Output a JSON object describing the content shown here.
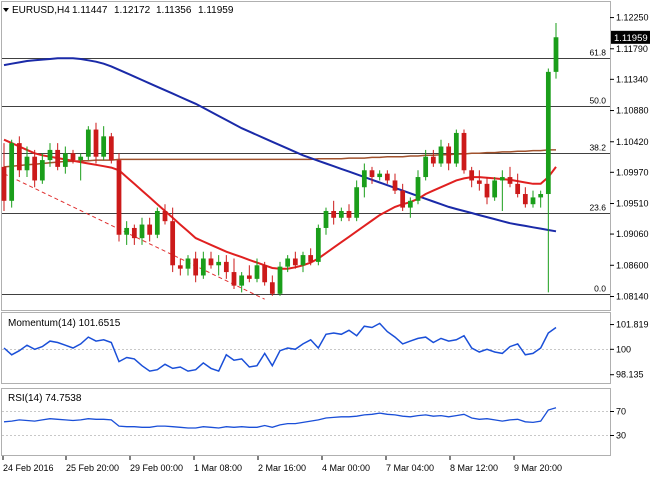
{
  "chart_data": [
    {
      "type": "candlestick",
      "symbol_title": "EURUSD,H4",
      "ohlc_header": [
        "1.11447",
        "1.12172",
        "1.11356",
        "1.11959"
      ],
      "ylim": [
        1.08,
        1.1245
      ],
      "yticks": [
        "1.12250",
        "1.11790",
        "1.11340",
        "1.10880",
        "1.10420",
        "1.09970",
        "1.09510",
        "1.09060",
        "1.08600",
        "1.08140"
      ],
      "current_price": "1.11959",
      "x_labels": [
        "24 Feb 2016",
        "25 Feb 20:00",
        "29 Feb 00:00",
        "1 Mar 08:00",
        "2 Mar 16:00",
        "4 Mar 00:00",
        "7 Mar 04:00",
        "8 Mar 12:00",
        "9 Mar 20:00"
      ],
      "fibonacci": [
        {
          "label": "61.8",
          "value": 1.1165
        },
        {
          "label": "50.0",
          "value": 1.1095
        },
        {
          "label": "38.2",
          "value": 1.1025
        },
        {
          "label": "23.6",
          "value": 1.0937
        },
        {
          "label": "0.0",
          "value": 1.0818
        }
      ],
      "candles": [
        [
          1.1005,
          1.104,
          1.094,
          1.0955
        ],
        [
          1.0955,
          1.1045,
          1.0945,
          1.104
        ],
        [
          1.104,
          1.105,
          1.099,
          1.1
        ],
        [
          1.1,
          1.1035,
          1.099,
          1.102
        ],
        [
          1.102,
          1.103,
          1.0975,
          1.0985
        ],
        [
          1.0985,
          1.1025,
          1.098,
          1.1015
        ],
        [
          1.1015,
          1.104,
          1.1005,
          1.103
        ],
        [
          1.103,
          1.104,
          1.1,
          1.1005
        ],
        [
          1.1005,
          1.1035,
          1.0995,
          1.1025
        ],
        [
          1.1025,
          1.103,
          1.101,
          1.1015
        ],
        [
          1.1015,
          1.1025,
          1.0985,
          1.102
        ],
        [
          1.102,
          1.1065,
          1.1015,
          1.106
        ],
        [
          1.106,
          1.107,
          1.101,
          1.102
        ],
        [
          1.102,
          1.1065,
          1.1015,
          1.105
        ],
        [
          1.105,
          1.1055,
          1.101,
          1.1015
        ],
        [
          1.1015,
          1.1025,
          1.0895,
          1.0905
        ],
        [
          1.0905,
          1.0925,
          1.089,
          1.0915
        ],
        [
          1.0915,
          1.092,
          1.089,
          1.09
        ],
        [
          1.09,
          1.093,
          1.089,
          1.092
        ],
        [
          1.092,
          1.093,
          1.0895,
          1.0905
        ],
        [
          1.0905,
          1.0945,
          1.09,
          1.094
        ],
        [
          1.094,
          1.095,
          1.092,
          1.0925
        ],
        [
          1.0925,
          1.0945,
          1.085,
          1.086
        ],
        [
          1.086,
          1.087,
          1.0845,
          1.0855
        ],
        [
          1.0855,
          1.0875,
          1.0845,
          1.087
        ],
        [
          1.087,
          1.088,
          1.0835,
          1.0845
        ],
        [
          1.0845,
          1.088,
          1.084,
          1.087
        ],
        [
          1.087,
          1.088,
          1.0855,
          1.086
        ],
        [
          1.086,
          1.0875,
          1.0845,
          1.0865
        ],
        [
          1.0865,
          1.0875,
          1.084,
          1.085
        ],
        [
          1.085,
          1.087,
          1.0825,
          1.083
        ],
        [
          1.083,
          1.085,
          1.082,
          1.0845
        ],
        [
          1.0845,
          1.086,
          1.0835,
          1.084
        ],
        [
          1.084,
          1.087,
          1.0835,
          1.086
        ],
        [
          1.086,
          1.0865,
          1.083,
          1.0835
        ],
        [
          1.0835,
          1.0845,
          1.0815,
          1.0818
        ],
        [
          1.0818,
          1.0865,
          1.0815,
          1.0858
        ],
        [
          1.0858,
          1.0875,
          1.085,
          1.087
        ],
        [
          1.087,
          1.088,
          1.0855,
          1.086
        ],
        [
          1.086,
          1.088,
          1.085,
          1.0875
        ],
        [
          1.0875,
          1.0885,
          1.086,
          1.0865
        ],
        [
          1.0865,
          1.092,
          1.086,
          1.0915
        ],
        [
          1.0915,
          1.0945,
          1.0905,
          1.094
        ],
        [
          1.094,
          1.0955,
          1.092,
          1.093
        ],
        [
          1.093,
          1.0945,
          1.0925,
          1.094
        ],
        [
          1.094,
          1.095,
          1.0925,
          1.093
        ],
        [
          1.093,
          1.0985,
          1.0925,
          1.0975
        ],
        [
          1.0975,
          1.101,
          1.096,
          1.1
        ],
        [
          1.1,
          1.1005,
          1.098,
          1.099
        ],
        [
          1.099,
          1.1,
          1.0985,
          1.0995
        ],
        [
          1.0995,
          1.1,
          1.098,
          1.0985
        ],
        [
          1.0985,
          1.0995,
          1.0965,
          1.097
        ],
        [
          1.097,
          1.098,
          1.094,
          1.0945
        ],
        [
          1.0945,
          1.096,
          1.093,
          1.0955
        ],
        [
          1.0955,
          1.1,
          1.095,
          1.099
        ],
        [
          1.099,
          1.103,
          1.0985,
          1.102
        ],
        [
          1.102,
          1.103,
          1.1005,
          1.101
        ],
        [
          1.101,
          1.1045,
          1.1005,
          1.1035
        ],
        [
          1.1035,
          1.104,
          1.1,
          1.101
        ],
        [
          1.101,
          1.106,
          1.1005,
          1.1055
        ],
        [
          1.1055,
          1.106,
          1.0995,
          1.1
        ],
        [
          1.1,
          1.1005,
          1.0975,
          1.0985
        ],
        [
          1.0985,
          1.1,
          1.097,
          1.098
        ],
        [
          1.098,
          1.099,
          1.095,
          1.096
        ],
        [
          1.096,
          1.099,
          1.0955,
          1.0985
        ],
        [
          1.0985,
          1.1,
          1.094,
          1.099
        ],
        [
          1.099,
          1.1005,
          1.0975,
          1.098
        ],
        [
          1.098,
          1.0995,
          1.096,
          1.0965
        ],
        [
          1.0965,
          1.0975,
          1.0945,
          1.095
        ],
        [
          1.095,
          1.097,
          1.0945,
          1.096
        ],
        [
          1.096,
          1.097,
          1.0945,
          1.0965
        ],
        [
          1.0965,
          1.115,
          1.082,
          1.1145
        ],
        [
          1.1145,
          1.1217,
          1.1135,
          1.1196
        ]
      ],
      "ma_red": [
        1.1045,
        1.104,
        1.1035,
        1.103,
        1.1025,
        1.1022,
        1.102,
        1.1018,
        1.1016,
        1.1014,
        1.1012,
        1.101,
        1.1008,
        1.1006,
        1.1004,
        1.1,
        1.099,
        1.098,
        1.097,
        1.096,
        1.095,
        1.094,
        1.093,
        1.092,
        1.091,
        1.09,
        1.0895,
        1.089,
        1.0885,
        1.088,
        1.0876,
        1.0872,
        1.0868,
        1.0864,
        1.086,
        1.0856,
        1.0855,
        1.0855,
        1.0857,
        1.086,
        1.0864,
        1.087,
        1.0878,
        1.0886,
        1.0894,
        1.0902,
        1.091,
        1.0918,
        1.0926,
        1.0934,
        1.094,
        1.0946,
        1.095,
        1.0953,
        1.0958,
        1.0965,
        1.097,
        1.0975,
        1.098,
        1.0985,
        1.0988,
        1.099,
        1.099,
        1.0989,
        1.0988,
        1.0987,
        1.0986,
        1.0984,
        1.0982,
        1.098,
        1.098,
        1.099,
        1.1005
      ],
      "ma_blue": [
        1.1155,
        1.1157,
        1.1159,
        1.1161,
        1.1162,
        1.1163,
        1.1164,
        1.1165,
        1.1165,
        1.1165,
        1.1164,
        1.1162,
        1.116,
        1.1157,
        1.1153,
        1.1148,
        1.1143,
        1.1138,
        1.1133,
        1.1128,
        1.1123,
        1.1118,
        1.1113,
        1.1108,
        1.1103,
        1.1098,
        1.1092,
        1.1086,
        1.108,
        1.1074,
        1.1068,
        1.1062,
        1.1057,
        1.1052,
        1.1047,
        1.1042,
        1.1037,
        1.1032,
        1.1027,
        1.1022,
        1.1018,
        1.1014,
        1.101,
        1.1006,
        1.1002,
        1.0998,
        1.0994,
        1.099,
        1.0986,
        1.0982,
        1.0978,
        1.0974,
        1.097,
        1.0966,
        1.0962,
        1.0958,
        1.0954,
        1.095,
        1.0946,
        1.0943,
        1.094,
        1.0937,
        1.0934,
        1.0931,
        1.0928,
        1.0925,
        1.0922,
        1.092,
        1.0918,
        1.0916,
        1.0914,
        1.0912,
        1.091
      ],
      "ma_brown": [
        1.1005,
        1.1006,
        1.1007,
        1.1008,
        1.1009,
        1.101,
        1.1011,
        1.1012,
        1.1013,
        1.1013,
        1.1014,
        1.1014,
        1.1015,
        1.1015,
        1.1015,
        1.1016,
        1.1016,
        1.1016,
        1.1016,
        1.1016,
        1.1016,
        1.1016,
        1.1016,
        1.1016,
        1.1016,
        1.1016,
        1.1016,
        1.1016,
        1.1016,
        1.1016,
        1.1016,
        1.1016,
        1.1016,
        1.1016,
        1.1016,
        1.1016,
        1.1016,
        1.1016,
        1.1016,
        1.1016,
        1.1016,
        1.1017,
        1.1017,
        1.1017,
        1.1017,
        1.1018,
        1.1018,
        1.1018,
        1.1019,
        1.1019,
        1.102,
        1.102,
        1.102,
        1.1021,
        1.1021,
        1.1022,
        1.1022,
        1.1023,
        1.1023,
        1.1024,
        1.1024,
        1.1025,
        1.1025,
        1.1026,
        1.1026,
        1.1027,
        1.1027,
        1.1028,
        1.1028,
        1.1029,
        1.1029,
        1.103,
        1.103
      ],
      "trend_line": [
        [
          0,
          1.0995
        ],
        [
          34,
          1.081
        ]
      ],
      "colors": {
        "bull": "#1a9e1a",
        "bear": "#cc1a1a",
        "ma_red": "#e02020",
        "ma_blue": "#1a2aa8",
        "ma_brown": "#a0522d",
        "trend": "#e03030"
      }
    },
    {
      "type": "line",
      "name": "Momentum(14) 101.6515",
      "ylim": [
        97.6,
        102.3
      ],
      "yticks": [
        "101.819",
        "100",
        "98.135"
      ],
      "values": [
        100.1,
        99.6,
        99.9,
        100.3,
        100.0,
        100.2,
        100.6,
        100.5,
        100.3,
        100.1,
        100.4,
        100.9,
        100.6,
        100.7,
        100.5,
        99.1,
        99.4,
        99.3,
        98.8,
        98.4,
        98.5,
        98.9,
        98.6,
        98.7,
        98.4,
        98.5,
        99.0,
        98.6,
        98.4,
        99.6,
        99.2,
        99.3,
        98.7,
        98.8,
        99.7,
        98.8,
        99.9,
        100.1,
        100.0,
        100.4,
        100.7,
        100.1,
        101.1,
        101.2,
        101.1,
        101.4,
        101.0,
        101.7,
        101.6,
        101.9,
        101.3,
        100.9,
        100.4,
        100.6,
        100.8,
        100.9,
        100.5,
        100.8,
        100.6,
        100.7,
        101.0,
        100.1,
        99.8,
        100.0,
        99.8,
        99.7,
        100.2,
        100.4,
        99.6,
        99.7,
        100.1,
        101.2,
        101.6
      ],
      "colors": {
        "line": "#1a4fd8"
      }
    },
    {
      "type": "line",
      "name": "RSI(14) 74.7538",
      "ylim": [
        0,
        100
      ],
      "yticks": [
        "70",
        "30"
      ],
      "values": [
        52,
        53,
        55,
        54,
        53,
        55,
        57,
        56,
        55,
        54,
        55,
        57,
        56,
        56,
        55,
        45,
        44,
        44,
        43,
        43,
        45,
        45,
        44,
        43,
        42,
        42,
        44,
        43,
        42,
        44,
        43,
        44,
        43,
        43,
        46,
        43,
        47,
        49,
        49,
        51,
        53,
        55,
        58,
        59,
        60,
        60,
        61,
        63,
        64,
        66,
        64,
        63,
        61,
        60,
        62,
        63,
        61,
        62,
        60,
        62,
        64,
        58,
        56,
        57,
        55,
        53,
        55,
        56,
        52,
        51,
        53,
        71,
        74.75
      ],
      "colors": {
        "line": "#1a4fd8"
      }
    }
  ]
}
